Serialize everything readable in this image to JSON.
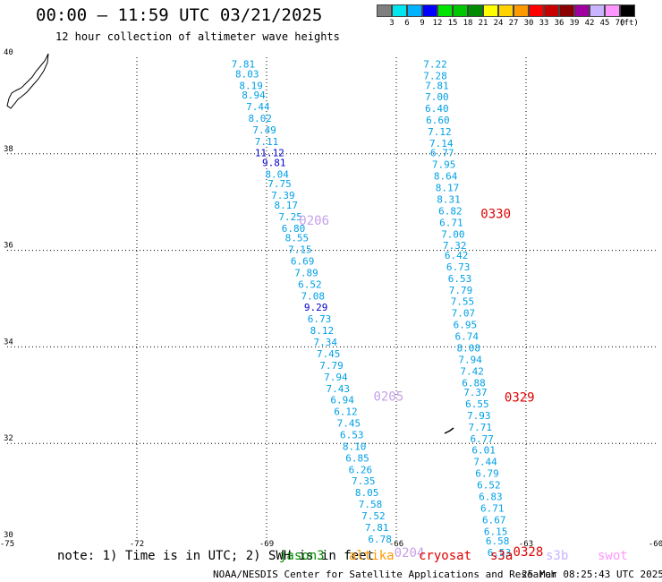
{
  "header": {
    "title": "00:00 – 11:59 UTC 03/21/2025",
    "subtitle": "12 hour collection of altimeter wave heights"
  },
  "color_scale": {
    "swatches": [
      "#7f7f7f",
      "#00e5ee",
      "#00b2ff",
      "#0000ff",
      "#00e500",
      "#00c800",
      "#008c00",
      "#ffff00",
      "#ffd200",
      "#ff9900",
      "#ff0000",
      "#c80000",
      "#8b0000",
      "#a000a0",
      "#c8b4ff",
      "#ff96ff",
      "#000000"
    ],
    "labels": [
      "3",
      "6",
      "9",
      "12",
      "15",
      "18",
      "21",
      "24",
      "27",
      "30",
      "33",
      "36",
      "39",
      "42",
      "45",
      "70",
      "(ft)"
    ]
  },
  "chart_data": {
    "type": "map",
    "x_range": [
      -75,
      -60
    ],
    "y_range": [
      30,
      40
    ],
    "x_ticks": [
      "-75",
      "-72",
      "-69",
      "-66",
      "-63",
      "-60"
    ],
    "x_tick_values": [
      -75,
      -72,
      -69,
      -66,
      -63,
      -60
    ],
    "y_ticks": [
      "30",
      "32",
      "34",
      "36",
      "38",
      "40"
    ],
    "y_tick_values": [
      30,
      32,
      34,
      36,
      38,
      40
    ],
    "grid": true,
    "tracks": [
      {
        "color": "#00a0e6",
        "points": [
          {
            "lon": -69.54,
            "lat": 39.86,
            "label": "7.81"
          },
          {
            "lon": -69.45,
            "lat": 39.66,
            "label": "8.03"
          },
          {
            "lon": -69.36,
            "lat": 39.42,
            "label": "8.19"
          },
          {
            "lon": -69.3,
            "lat": 39.22,
            "label": "8.94"
          },
          {
            "lon": -69.2,
            "lat": 38.98,
            "label": "7.44"
          },
          {
            "lon": -69.15,
            "lat": 38.74,
            "label": "8.02"
          },
          {
            "lon": -69.05,
            "lat": 38.5,
            "label": "7.49"
          },
          {
            "lon": -69.0,
            "lat": 38.26,
            "label": "7.11"
          },
          {
            "lon": -68.93,
            "lat": 38.02,
            "label": "11.12",
            "color": "#0000cc"
          },
          {
            "lon": -68.83,
            "lat": 37.82,
            "label": "9.81",
            "color": "#0000cc"
          },
          {
            "lon": -68.76,
            "lat": 37.58,
            "label": "8.04"
          },
          {
            "lon": -68.7,
            "lat": 37.38,
            "label": "7.75"
          },
          {
            "lon": -68.62,
            "lat": 37.14,
            "label": "7.39"
          },
          {
            "lon": -68.55,
            "lat": 36.94,
            "label": "8.17"
          },
          {
            "lon": -68.45,
            "lat": 36.7,
            "label": "7.25"
          },
          {
            "lon": -68.38,
            "lat": 36.46,
            "label": "6.80"
          },
          {
            "lon": -68.3,
            "lat": 36.26,
            "label": "8.55"
          },
          {
            "lon": -68.23,
            "lat": 36.02,
            "label": "7.15"
          },
          {
            "lon": -68.17,
            "lat": 35.78,
            "label": "6.69"
          },
          {
            "lon": -68.08,
            "lat": 35.54,
            "label": "7.89"
          },
          {
            "lon": -68.0,
            "lat": 35.3,
            "label": "6.52"
          },
          {
            "lon": -67.93,
            "lat": 35.06,
            "label": "7.08"
          },
          {
            "lon": -67.86,
            "lat": 34.82,
            "label": "9.29",
            "color": "#0000cc"
          },
          {
            "lon": -67.78,
            "lat": 34.58,
            "label": "6.73"
          },
          {
            "lon": -67.72,
            "lat": 34.34,
            "label": "8.12"
          },
          {
            "lon": -67.64,
            "lat": 34.1,
            "label": "7.34"
          },
          {
            "lon": -67.57,
            "lat": 33.86,
            "label": "7.45"
          },
          {
            "lon": -67.5,
            "lat": 33.62,
            "label": "7.79"
          },
          {
            "lon": -67.4,
            "lat": 33.38,
            "label": "7.94"
          },
          {
            "lon": -67.35,
            "lat": 33.14,
            "label": "7.43"
          },
          {
            "lon": -67.25,
            "lat": 32.9,
            "label": "6.94"
          },
          {
            "lon": -67.17,
            "lat": 32.66,
            "label": "6.12"
          },
          {
            "lon": -67.1,
            "lat": 32.42,
            "label": "7.45"
          },
          {
            "lon": -67.03,
            "lat": 32.18,
            "label": "6.53"
          },
          {
            "lon": -66.97,
            "lat": 31.94,
            "label": "8.10"
          },
          {
            "lon": -66.9,
            "lat": 31.7,
            "label": "6.85"
          },
          {
            "lon": -66.83,
            "lat": 31.46,
            "label": "6.26"
          },
          {
            "lon": -66.76,
            "lat": 31.22,
            "label": "7.35"
          },
          {
            "lon": -66.68,
            "lat": 30.98,
            "label": "8.05"
          },
          {
            "lon": -66.6,
            "lat": 30.74,
            "label": "7.58"
          },
          {
            "lon": -66.53,
            "lat": 30.5,
            "label": "7.52"
          },
          {
            "lon": -66.45,
            "lat": 30.26,
            "label": "7.81"
          },
          {
            "lon": -66.38,
            "lat": 30.02,
            "label": "6.78"
          }
        ]
      },
      {
        "color": "#00a0e6",
        "points": [
          {
            "lon": -65.1,
            "lat": 39.86,
            "label": "7.22"
          },
          {
            "lon": -65.1,
            "lat": 39.62,
            "label": "7.28"
          },
          {
            "lon": -65.06,
            "lat": 39.42,
            "label": "7.81"
          },
          {
            "lon": -65.06,
            "lat": 39.18,
            "label": "7.00"
          },
          {
            "lon": -65.06,
            "lat": 38.94,
            "label": "6.40"
          },
          {
            "lon": -65.04,
            "lat": 38.7,
            "label": "6.60"
          },
          {
            "lon": -65.0,
            "lat": 38.46,
            "label": "7.12"
          },
          {
            "lon": -64.96,
            "lat": 38.22,
            "label": "7.14"
          },
          {
            "lon": -64.94,
            "lat": 38.02,
            "label": "6.77"
          },
          {
            "lon": -64.9,
            "lat": 37.78,
            "label": "7.95"
          },
          {
            "lon": -64.86,
            "lat": 37.54,
            "label": "8.64"
          },
          {
            "lon": -64.82,
            "lat": 37.3,
            "label": "8.17"
          },
          {
            "lon": -64.79,
            "lat": 37.06,
            "label": "8.31"
          },
          {
            "lon": -64.75,
            "lat": 36.82,
            "label": "6.82"
          },
          {
            "lon": -64.73,
            "lat": 36.58,
            "label": "6.71"
          },
          {
            "lon": -64.69,
            "lat": 36.34,
            "label": "7.00"
          },
          {
            "lon": -64.65,
            "lat": 36.1,
            "label": "7.32"
          },
          {
            "lon": -64.61,
            "lat": 35.9,
            "label": "6.42"
          },
          {
            "lon": -64.57,
            "lat": 35.66,
            "label": "6.73"
          },
          {
            "lon": -64.53,
            "lat": 35.42,
            "label": "6.53"
          },
          {
            "lon": -64.51,
            "lat": 35.18,
            "label": "7.79"
          },
          {
            "lon": -64.47,
            "lat": 34.94,
            "label": "7.55"
          },
          {
            "lon": -64.45,
            "lat": 34.7,
            "label": "7.07"
          },
          {
            "lon": -64.41,
            "lat": 34.46,
            "label": "6.95"
          },
          {
            "lon": -64.37,
            "lat": 34.22,
            "label": "6.74"
          },
          {
            "lon": -64.33,
            "lat": 33.98,
            "label": "8.08"
          },
          {
            "lon": -64.29,
            "lat": 33.74,
            "label": "7.94"
          },
          {
            "lon": -64.25,
            "lat": 33.5,
            "label": "7.42"
          },
          {
            "lon": -64.21,
            "lat": 33.26,
            "label": "6.88"
          },
          {
            "lon": -64.17,
            "lat": 33.06,
            "label": "7.37"
          },
          {
            "lon": -64.13,
            "lat": 32.82,
            "label": "6.55"
          },
          {
            "lon": -64.09,
            "lat": 32.58,
            "label": "7.93"
          },
          {
            "lon": -64.06,
            "lat": 32.34,
            "label": "7.71"
          },
          {
            "lon": -64.02,
            "lat": 32.1,
            "label": "6.77"
          },
          {
            "lon": -63.98,
            "lat": 31.86,
            "label": "6.01"
          },
          {
            "lon": -63.94,
            "lat": 31.62,
            "label": "7.44"
          },
          {
            "lon": -63.9,
            "lat": 31.38,
            "label": "6.79"
          },
          {
            "lon": -63.86,
            "lat": 31.14,
            "label": "6.52"
          },
          {
            "lon": -63.82,
            "lat": 30.9,
            "label": "6.83"
          },
          {
            "lon": -63.78,
            "lat": 30.66,
            "label": "6.71"
          },
          {
            "lon": -63.74,
            "lat": 30.42,
            "label": "6.67"
          },
          {
            "lon": -63.7,
            "lat": 30.18,
            "label": "6.15"
          },
          {
            "lon": -63.66,
            "lat": 29.98,
            "label": "6.58"
          },
          {
            "lon": -63.62,
            "lat": 29.74,
            "label": "6.53"
          }
        ]
      }
    ],
    "pass_times": [
      {
        "lon": -67.9,
        "lat": 36.62,
        "label": "0206",
        "color": "#c8a0e8"
      },
      {
        "lon": -66.18,
        "lat": 32.98,
        "label": "0205",
        "color": "#c8a0e8"
      },
      {
        "lon": -65.7,
        "lat": 29.74,
        "label": "0204",
        "color": "#c8a0e8"
      },
      {
        "lon": -63.7,
        "lat": 36.76,
        "label": "0330",
        "color": "#e00000"
      },
      {
        "lon": -63.15,
        "lat": 32.96,
        "label": "0329",
        "color": "#e00000"
      },
      {
        "lon": -62.95,
        "lat": 29.76,
        "label": "0328",
        "color": "#e00000"
      }
    ]
  },
  "footer": {
    "note": "note: 1) Time is in UTC; 2) SWH is in feet",
    "satellites": [
      {
        "label": "jason3",
        "color": "#008c00"
      },
      {
        "label": "altika",
        "color": "#ff9900"
      },
      {
        "label": "cryosat",
        "color": "#e00000"
      },
      {
        "label": "s3a",
        "color": "#c80000"
      },
      {
        "label": "s3b",
        "color": "#c8b4ff"
      },
      {
        "label": "swot",
        "color": "#ff96ff"
      }
    ],
    "credit": "NOAA/NESDIS Center for Satellite Applications and Research",
    "timestamp": "25 Mar 08:25:43 UTC 2025"
  }
}
